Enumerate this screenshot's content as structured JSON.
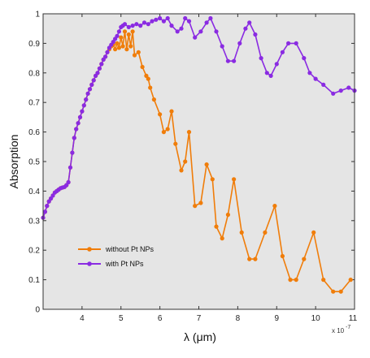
{
  "chart_data": {
    "type": "line",
    "title": "",
    "xlabel": "λ (μm)",
    "ylabel": "Absorption",
    "x_multiplier_label": "x 10",
    "x_multiplier_exponent": "-7",
    "xlim": [
      3.0,
      11.0
    ],
    "ylim": [
      0,
      1
    ],
    "xticks": [
      4,
      5,
      6,
      7,
      8,
      9,
      10,
      11
    ],
    "yticks": [
      0,
      0.1,
      0.2,
      0.3,
      0.4,
      0.5,
      0.6,
      0.7,
      0.8,
      0.9,
      1
    ],
    "ytick_labels": [
      "0",
      "0.1",
      "0.2",
      "0.3",
      "0.4",
      "0.5",
      "0.6",
      "0.7",
      "0.8",
      "0.9",
      "1"
    ],
    "grid": false,
    "legend_position": "bottom-left",
    "background": "#e5e5e5",
    "series": [
      {
        "name": "without Pt NPs",
        "color": "#f07d0a",
        "points": [
          [
            3.0,
            0.31
          ],
          [
            3.05,
            0.33
          ],
          [
            3.1,
            0.35
          ],
          [
            3.15,
            0.365
          ],
          [
            3.2,
            0.375
          ],
          [
            3.25,
            0.385
          ],
          [
            3.3,
            0.395
          ],
          [
            3.35,
            0.4
          ],
          [
            3.4,
            0.405
          ],
          [
            3.45,
            0.41
          ],
          [
            3.5,
            0.412
          ],
          [
            3.55,
            0.414
          ],
          [
            3.6,
            0.42
          ],
          [
            3.65,
            0.43
          ],
          [
            3.7,
            0.48
          ],
          [
            3.75,
            0.53
          ],
          [
            3.8,
            0.58
          ],
          [
            3.85,
            0.61
          ],
          [
            3.9,
            0.63
          ],
          [
            3.95,
            0.65
          ],
          [
            4.0,
            0.67
          ],
          [
            4.05,
            0.69
          ],
          [
            4.1,
            0.71
          ],
          [
            4.15,
            0.73
          ],
          [
            4.2,
            0.745
          ],
          [
            4.25,
            0.76
          ],
          [
            4.3,
            0.775
          ],
          [
            4.35,
            0.79
          ],
          [
            4.4,
            0.8
          ],
          [
            4.45,
            0.815
          ],
          [
            4.5,
            0.83
          ],
          [
            4.55,
            0.845
          ],
          [
            4.6,
            0.855
          ],
          [
            4.65,
            0.87
          ],
          [
            4.7,
            0.88
          ],
          [
            4.75,
            0.89
          ],
          [
            4.8,
            0.895
          ],
          [
            4.85,
            0.88
          ],
          [
            4.9,
            0.9
          ],
          [
            4.95,
            0.885
          ],
          [
            5.0,
            0.92
          ],
          [
            5.05,
            0.89
          ],
          [
            5.1,
            0.94
          ],
          [
            5.15,
            0.88
          ],
          [
            5.2,
            0.93
          ],
          [
            5.25,
            0.89
          ],
          [
            5.3,
            0.94
          ],
          [
            5.35,
            0.86
          ],
          [
            5.45,
            0.87
          ],
          [
            5.55,
            0.82
          ],
          [
            5.65,
            0.79
          ],
          [
            5.7,
            0.78
          ],
          [
            5.75,
            0.75
          ],
          [
            5.85,
            0.71
          ],
          [
            6.0,
            0.66
          ],
          [
            6.1,
            0.6
          ],
          [
            6.2,
            0.61
          ],
          [
            6.3,
            0.67
          ],
          [
            6.4,
            0.56
          ],
          [
            6.55,
            0.47
          ],
          [
            6.65,
            0.5
          ],
          [
            6.75,
            0.6
          ],
          [
            6.9,
            0.35
          ],
          [
            7.05,
            0.36
          ],
          [
            7.2,
            0.49
          ],
          [
            7.35,
            0.44
          ],
          [
            7.45,
            0.28
          ],
          [
            7.6,
            0.24
          ],
          [
            7.75,
            0.32
          ],
          [
            7.9,
            0.44
          ],
          [
            8.1,
            0.26
          ],
          [
            8.3,
            0.17
          ],
          [
            8.45,
            0.17
          ],
          [
            8.7,
            0.26
          ],
          [
            8.95,
            0.35
          ],
          [
            9.15,
            0.18
          ],
          [
            9.35,
            0.1
          ],
          [
            9.5,
            0.1
          ],
          [
            9.7,
            0.17
          ],
          [
            9.95,
            0.26
          ],
          [
            10.2,
            0.1
          ],
          [
            10.45,
            0.06
          ],
          [
            10.65,
            0.06
          ],
          [
            10.9,
            0.1
          ]
        ]
      },
      {
        "name": "with Pt NPs",
        "color": "#8a2be2",
        "points": [
          [
            3.0,
            0.31
          ],
          [
            3.05,
            0.33
          ],
          [
            3.1,
            0.35
          ],
          [
            3.15,
            0.365
          ],
          [
            3.2,
            0.375
          ],
          [
            3.25,
            0.385
          ],
          [
            3.3,
            0.395
          ],
          [
            3.35,
            0.4
          ],
          [
            3.4,
            0.405
          ],
          [
            3.45,
            0.41
          ],
          [
            3.5,
            0.412
          ],
          [
            3.55,
            0.414
          ],
          [
            3.6,
            0.42
          ],
          [
            3.65,
            0.43
          ],
          [
            3.7,
            0.48
          ],
          [
            3.75,
            0.53
          ],
          [
            3.8,
            0.58
          ],
          [
            3.85,
            0.61
          ],
          [
            3.9,
            0.63
          ],
          [
            3.95,
            0.65
          ],
          [
            4.0,
            0.67
          ],
          [
            4.05,
            0.69
          ],
          [
            4.1,
            0.71
          ],
          [
            4.15,
            0.73
          ],
          [
            4.2,
            0.745
          ],
          [
            4.25,
            0.76
          ],
          [
            4.3,
            0.775
          ],
          [
            4.35,
            0.79
          ],
          [
            4.4,
            0.8
          ],
          [
            4.45,
            0.815
          ],
          [
            4.5,
            0.83
          ],
          [
            4.55,
            0.845
          ],
          [
            4.6,
            0.855
          ],
          [
            4.65,
            0.87
          ],
          [
            4.7,
            0.885
          ],
          [
            4.75,
            0.895
          ],
          [
            4.8,
            0.905
          ],
          [
            4.85,
            0.915
          ],
          [
            4.9,
            0.925
          ],
          [
            4.95,
            0.94
          ],
          [
            5.0,
            0.955
          ],
          [
            5.05,
            0.96
          ],
          [
            5.1,
            0.965
          ],
          [
            5.2,
            0.955
          ],
          [
            5.3,
            0.96
          ],
          [
            5.4,
            0.965
          ],
          [
            5.5,
            0.96
          ],
          [
            5.6,
            0.97
          ],
          [
            5.7,
            0.965
          ],
          [
            5.8,
            0.975
          ],
          [
            5.9,
            0.98
          ],
          [
            6.0,
            0.985
          ],
          [
            6.1,
            0.975
          ],
          [
            6.2,
            0.985
          ],
          [
            6.3,
            0.96
          ],
          [
            6.45,
            0.94
          ],
          [
            6.55,
            0.95
          ],
          [
            6.65,
            0.985
          ],
          [
            6.75,
            0.975
          ],
          [
            6.9,
            0.92
          ],
          [
            7.05,
            0.94
          ],
          [
            7.2,
            0.97
          ],
          [
            7.3,
            0.985
          ],
          [
            7.45,
            0.94
          ],
          [
            7.6,
            0.89
          ],
          [
            7.75,
            0.84
          ],
          [
            7.9,
            0.84
          ],
          [
            8.05,
            0.9
          ],
          [
            8.2,
            0.95
          ],
          [
            8.3,
            0.97
          ],
          [
            8.45,
            0.93
          ],
          [
            8.6,
            0.85
          ],
          [
            8.75,
            0.8
          ],
          [
            8.85,
            0.79
          ],
          [
            9.0,
            0.83
          ],
          [
            9.15,
            0.87
          ],
          [
            9.3,
            0.9
          ],
          [
            9.5,
            0.9
          ],
          [
            9.7,
            0.85
          ],
          [
            9.85,
            0.8
          ],
          [
            10.0,
            0.78
          ],
          [
            10.2,
            0.76
          ],
          [
            10.45,
            0.73
          ],
          [
            10.65,
            0.74
          ],
          [
            10.85,
            0.75
          ],
          [
            11.0,
            0.74
          ]
        ]
      }
    ]
  }
}
